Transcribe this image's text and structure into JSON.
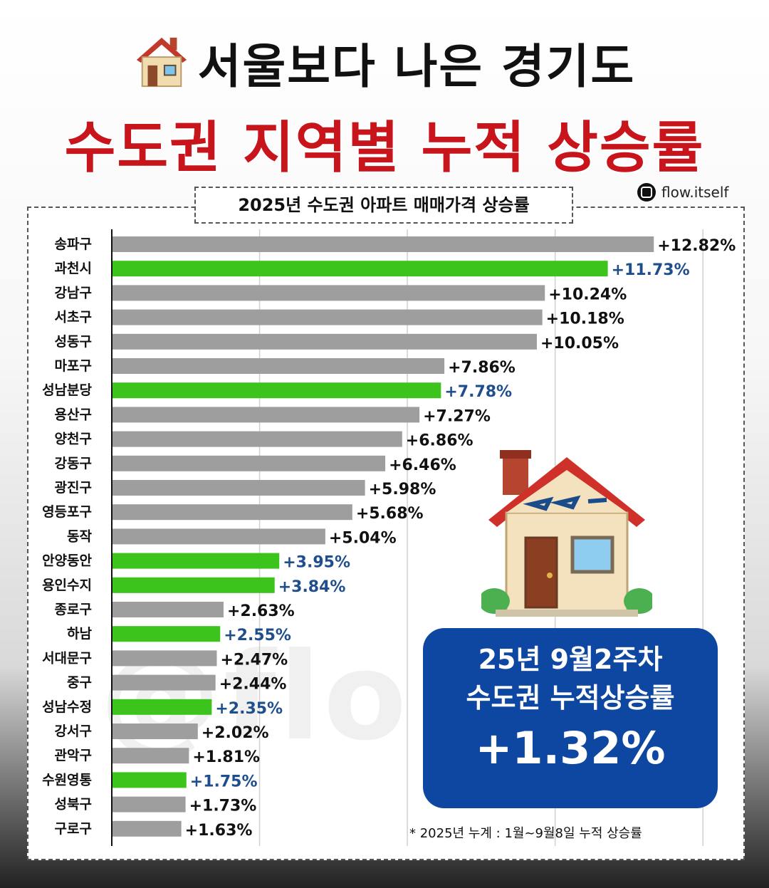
{
  "header": {
    "title_line1": "서울보다 나은 경기도",
    "title_line2": "수도권 지역별 누적 상승률",
    "credit": "flow.itself",
    "subtitle": "2025년 수도권 아파트 매매가격 상승률"
  },
  "summary": {
    "line1": "25년 9월2주차",
    "line2": "수도권 누적상승률",
    "line3": "+1.32%"
  },
  "footnote": "* 2025년 누계 :  1월~9월8일 누적 상승률",
  "watermark": "@flo",
  "colors": {
    "title_red": "#c8141b",
    "bar_gray": "#9e9e9e",
    "bar_green": "#3cc41c",
    "green_value_text": "#1f4e8c",
    "summary_bg": "#0d47a1"
  },
  "chart_data": {
    "type": "bar",
    "orientation": "horizontal",
    "categories": [
      "송파구",
      "과천시",
      "강남구",
      "서초구",
      "성동구",
      "마포구",
      "성남분당",
      "용산구",
      "양천구",
      "강동구",
      "광진구",
      "영등포구",
      "동작",
      "안양동안",
      "용인수지",
      "종로구",
      "하남",
      "서대문구",
      "중구",
      "성남수정",
      "강서구",
      "관악구",
      "수원영통",
      "성북구",
      "구로구"
    ],
    "values": [
      12.82,
      11.73,
      10.24,
      10.18,
      10.05,
      7.86,
      7.78,
      7.27,
      6.86,
      6.46,
      5.98,
      5.68,
      5.04,
      3.95,
      3.84,
      2.63,
      2.55,
      2.47,
      2.44,
      2.35,
      2.02,
      1.81,
      1.75,
      1.73,
      1.63
    ],
    "value_labels": [
      "+12.82%",
      "+11.73%",
      "+10.24%",
      "+10.18%",
      "+10.05%",
      "+7.86%",
      "+7.78%",
      "+7.27%",
      "+6.86%",
      "+6.46%",
      "+5.98%",
      "+5.68%",
      "+5.04%",
      "+3.95%",
      "+3.84%",
      "+2.63%",
      "+2.55%",
      "+2.47%",
      "+2.44%",
      "+2.35%",
      "+2.02%",
      "+1.81%",
      "+1.75%",
      "+1.73%",
      "+1.63%"
    ],
    "highlight": [
      false,
      true,
      false,
      false,
      false,
      false,
      true,
      false,
      false,
      false,
      false,
      false,
      false,
      true,
      true,
      false,
      true,
      false,
      false,
      true,
      false,
      false,
      true,
      false,
      false
    ],
    "xlim": [
      0,
      14
    ],
    "grid": true
  }
}
